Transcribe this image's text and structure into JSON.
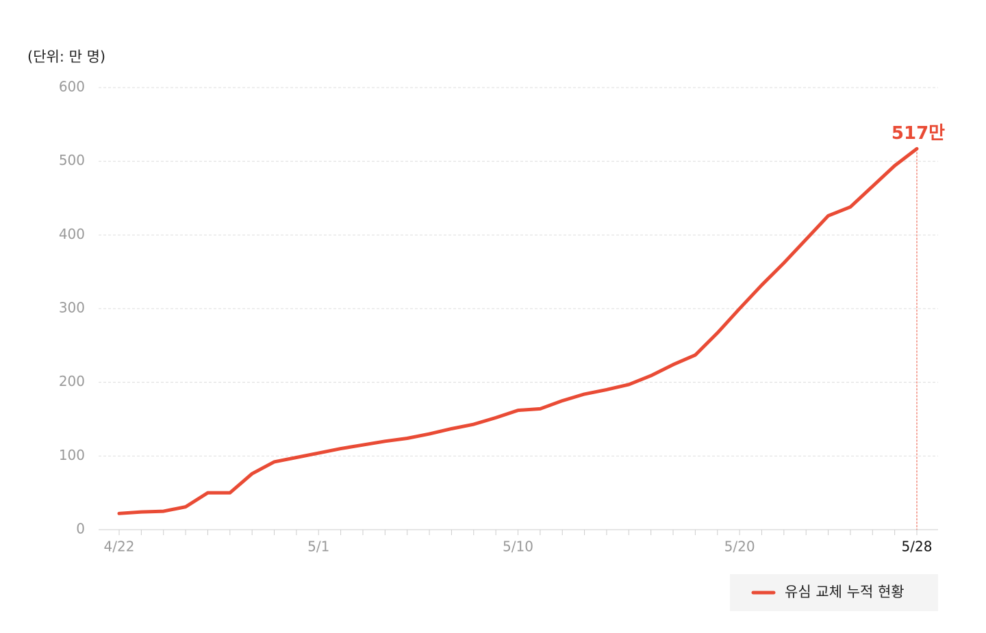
{
  "chart_data": {
    "type": "line",
    "y_label": "(단위: 만 명)",
    "categories": [
      "4/22",
      null,
      null,
      null,
      null,
      null,
      null,
      null,
      null,
      "5/1",
      null,
      null,
      null,
      null,
      null,
      null,
      null,
      null,
      "5/10",
      null,
      null,
      null,
      null,
      null,
      null,
      null,
      null,
      null,
      "5/20",
      null,
      null,
      null,
      null,
      null,
      null,
      null,
      "5/28"
    ],
    "series": [
      {
        "name": "유심 교체 누적 현황",
        "color": "#e94b35",
        "values": [
          22,
          24,
          25,
          31,
          50,
          50,
          76,
          92,
          98,
          104,
          110,
          115,
          120,
          124,
          130,
          137,
          143,
          152,
          162,
          164,
          175,
          184,
          190,
          197,
          209,
          224,
          237,
          267,
          300,
          332,
          362,
          394,
          426,
          438,
          466,
          494,
          517
        ],
        "value_labels": [
          null,
          null,
          null,
          null,
          null,
          null,
          null,
          null,
          null,
          null,
          null,
          null,
          null,
          null,
          null,
          null,
          null,
          null,
          null,
          null,
          null,
          null,
          null,
          null,
          null,
          null,
          null,
          null,
          null,
          null,
          null,
          null,
          null,
          null,
          null,
          null,
          "517만"
        ]
      }
    ],
    "ylim": [
      0,
      600
    ],
    "yticks": [
      0,
      100,
      200,
      300,
      400,
      500,
      600
    ],
    "grid": true,
    "legend": "bottom-right"
  }
}
